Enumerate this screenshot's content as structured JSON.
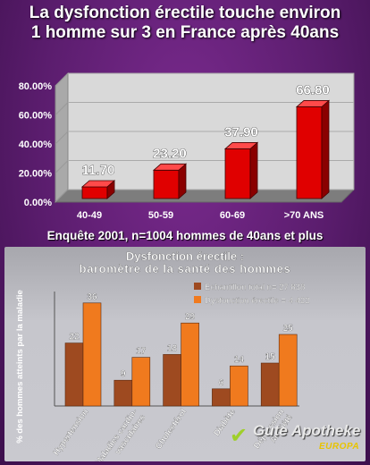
{
  "header": {
    "line1": "La dysfonction érectile touche environ",
    "line2": "1 homme sur 3 en France après 40ans"
  },
  "survey_note": "Enquête 2001, n=1004 hommes de 40ans et plus",
  "logo": {
    "name": "Gute Apotheke",
    "sub": "EUROPA",
    "icon": "star-check-icon"
  },
  "chart_data": [
    {
      "type": "bar",
      "title": "",
      "categories": [
        "40-49",
        "50-59",
        "60-69",
        ">70 ANS"
      ],
      "values": [
        11.7,
        23.2,
        37.9,
        66.8
      ],
      "value_labels": [
        "11.70",
        "23.20",
        "37.90",
        "66.80"
      ],
      "y_ticks": [
        "0.00%",
        "20.00%",
        "40.00%",
        "60.00%",
        "80.00%"
      ],
      "ylim": [
        0,
        80
      ],
      "style": "3d",
      "bar_color": "#e00000",
      "xlabel": "",
      "ylabel": ""
    },
    {
      "type": "bar",
      "title_line1": "Dysfonction érectile :",
      "title_line2": "baromètre de la santé des hommes",
      "ylabel": "% des hommes atteints par la maladie",
      "categories": [
        "Hypertension",
        "Maladies cardio-vasculaires",
        "Cholestérol",
        "Diabète",
        "Dépression /anxiété"
      ],
      "category_lines": [
        [
          "Hypertension"
        ],
        [
          "Maladies cardio-",
          "vasculaires"
        ],
        [
          "Cholestérol"
        ],
        [
          "Diabète"
        ],
        [
          "Dépression",
          "/anxiété"
        ]
      ],
      "ylim": [
        0,
        40
      ],
      "legend_position": "top-right",
      "series": [
        {
          "name": "Echantillon total n= 27 838",
          "values": [
            22,
            9,
            18,
            6,
            15
          ],
          "color": "#9e4a20"
        },
        {
          "name": "Dysfonction érectile = 4 422",
          "values": [
            36,
            17,
            29,
            14,
            25
          ],
          "color": "#f07a1e"
        }
      ]
    }
  ]
}
